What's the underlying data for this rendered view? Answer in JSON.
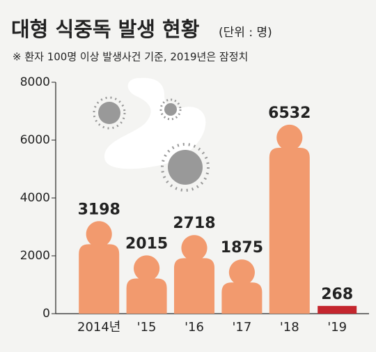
{
  "chart_data": {
    "type": "bar",
    "title": "대형 식중독 발생 현황",
    "subtitle": "(단위 : 명)",
    "note": "※ 환자 100명 이상 발생사건 기준, 2019년은 잠정치",
    "categories": [
      "2014년",
      "'15",
      "'16",
      "'17",
      "'18",
      "'19"
    ],
    "values": [
      3198,
      2015,
      2718,
      1875,
      6532,
      268
    ],
    "colors": [
      "#f29a6e",
      "#f29a6e",
      "#f29a6e",
      "#f29a6e",
      "#f29a6e",
      "#c4262e"
    ],
    "ylim": [
      0,
      8000
    ],
    "yticks": [
      0,
      2000,
      4000,
      6000,
      8000
    ]
  }
}
